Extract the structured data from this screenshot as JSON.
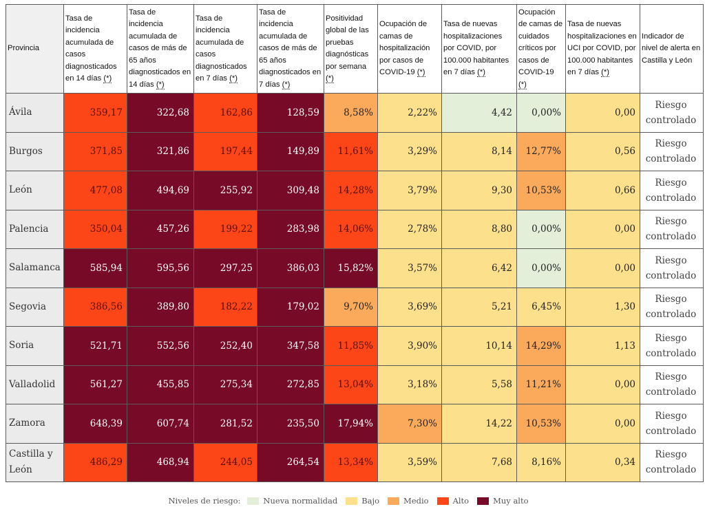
{
  "colors": {
    "nueva_normalidad": "#e3efd9",
    "bajo": "#fce08b",
    "medio": "#fbaa5b",
    "alto": "#fd4617",
    "muy_alto": "#760a27"
  },
  "table": {
    "info_mark": "(*)",
    "headers": [
      {
        "label": "Provincia",
        "has_info": false
      },
      {
        "label": "Tasa de incidencia acumulada de casos diagnosticados en 14 días",
        "has_info": true
      },
      {
        "label": "Tasa de incidencia acumulada de casos de más de 65 años diagnosticados en 14 días",
        "has_info": true
      },
      {
        "label": "Tasa de incidencia acumulada de casos diagnosticados en 7 días",
        "has_info": true
      },
      {
        "label": "Tasa de incidencia acumulada de casos de más de 65 años diagnosticados en 7 días",
        "has_info": true
      },
      {
        "label": "Positividad global de las pruebas diagnósticas por semana",
        "has_info": true
      },
      {
        "label": "Ocupación de camas de hospitalización por casos de COVID-19",
        "has_info": true
      },
      {
        "label": "Tasa de nuevas hospitalizaciones por COVID, por 100.000 habitantes en 7 días",
        "has_info": true
      },
      {
        "label": "Ocupación de camas de cuidados críticos por casos de COVID-19",
        "has_info": true
      },
      {
        "label": "Tasa de nuevas hospitalizaciones en UCI por COVID, por 100.000 habitantes en 7 días",
        "has_info": true
      },
      {
        "label": "Indicador de nivel de alerta en Castilla y León",
        "has_info": false
      }
    ],
    "rows": [
      {
        "provincia": "Ávila",
        "alerta": "Riesgo controlado",
        "cells": [
          [
            "359,17",
            "alto"
          ],
          [
            "322,68",
            "muy"
          ],
          [
            "162,86",
            "alto"
          ],
          [
            "128,59",
            "muy"
          ],
          [
            "8,58%",
            "med"
          ],
          [
            "2,22%",
            "bajo"
          ],
          [
            "4,42",
            "nn"
          ],
          [
            "0,00%",
            "nn"
          ],
          [
            "0,00",
            "bajo"
          ]
        ]
      },
      {
        "provincia": "Burgos",
        "alerta": "Riesgo controlado",
        "cells": [
          [
            "371,85",
            "alto"
          ],
          [
            "321,86",
            "muy"
          ],
          [
            "197,44",
            "alto"
          ],
          [
            "149,89",
            "muy"
          ],
          [
            "11,61%",
            "alto"
          ],
          [
            "3,29%",
            "bajo"
          ],
          [
            "8,14",
            "bajo"
          ],
          [
            "12,77%",
            "med"
          ],
          [
            "0,56",
            "bajo"
          ]
        ]
      },
      {
        "provincia": "León",
        "alerta": "Riesgo controlado",
        "cells": [
          [
            "477,08",
            "alto"
          ],
          [
            "494,69",
            "muy"
          ],
          [
            "255,92",
            "muy"
          ],
          [
            "309,48",
            "muy"
          ],
          [
            "14,28%",
            "alto"
          ],
          [
            "3,79%",
            "bajo"
          ],
          [
            "9,30",
            "bajo"
          ],
          [
            "10,53%",
            "med"
          ],
          [
            "0,66",
            "bajo"
          ]
        ]
      },
      {
        "provincia": "Palencia",
        "alerta": "Riesgo controlado",
        "cells": [
          [
            "350,04",
            "alto"
          ],
          [
            "457,26",
            "muy"
          ],
          [
            "199,22",
            "alto"
          ],
          [
            "283,98",
            "muy"
          ],
          [
            "14,06%",
            "alto"
          ],
          [
            "2,78%",
            "bajo"
          ],
          [
            "8,80",
            "bajo"
          ],
          [
            "0,00%",
            "nn"
          ],
          [
            "0,00",
            "bajo"
          ]
        ]
      },
      {
        "provincia": "Salamanca",
        "alerta": "Riesgo controlado",
        "cells": [
          [
            "585,94",
            "muy"
          ],
          [
            "595,56",
            "muy"
          ],
          [
            "297,25",
            "muy"
          ],
          [
            "386,03",
            "muy"
          ],
          [
            "15,82%",
            "muy"
          ],
          [
            "3,57%",
            "bajo"
          ],
          [
            "6,42",
            "bajo"
          ],
          [
            "0,00%",
            "nn"
          ],
          [
            "0,00",
            "bajo"
          ]
        ]
      },
      {
        "provincia": "Segovia",
        "alerta": "Riesgo controlado",
        "cells": [
          [
            "386,56",
            "alto"
          ],
          [
            "389,80",
            "muy"
          ],
          [
            "182,22",
            "alto"
          ],
          [
            "179,02",
            "muy"
          ],
          [
            "9,70%",
            "med"
          ],
          [
            "3,69%",
            "bajo"
          ],
          [
            "5,21",
            "bajo"
          ],
          [
            "6,45%",
            "bajo"
          ],
          [
            "1,30",
            "bajo"
          ]
        ]
      },
      {
        "provincia": "Soria",
        "alerta": "Riesgo controlado",
        "cells": [
          [
            "521,71",
            "muy"
          ],
          [
            "552,56",
            "muy"
          ],
          [
            "252,40",
            "muy"
          ],
          [
            "347,58",
            "muy"
          ],
          [
            "11,85%",
            "alto"
          ],
          [
            "3,90%",
            "bajo"
          ],
          [
            "10,14",
            "bajo"
          ],
          [
            "14,29%",
            "med"
          ],
          [
            "1,13",
            "bajo"
          ]
        ]
      },
      {
        "provincia": "Valladolid",
        "alerta": "Riesgo controlado",
        "cells": [
          [
            "561,27",
            "muy"
          ],
          [
            "455,85",
            "muy"
          ],
          [
            "275,34",
            "muy"
          ],
          [
            "272,85",
            "muy"
          ],
          [
            "13,04%",
            "alto"
          ],
          [
            "3,18%",
            "bajo"
          ],
          [
            "5,58",
            "bajo"
          ],
          [
            "11,21%",
            "med"
          ],
          [
            "0,00",
            "bajo"
          ]
        ]
      },
      {
        "provincia": "Zamora",
        "alerta": "Riesgo controlado",
        "cells": [
          [
            "648,39",
            "muy"
          ],
          [
            "607,74",
            "muy"
          ],
          [
            "281,52",
            "muy"
          ],
          [
            "235,50",
            "muy"
          ],
          [
            "17,94%",
            "muy"
          ],
          [
            "7,30%",
            "med"
          ],
          [
            "14,22",
            "bajo"
          ],
          [
            "10,53%",
            "med"
          ],
          [
            "0,00",
            "bajo"
          ]
        ]
      },
      {
        "provincia": "Castilla y León",
        "alerta": "Riesgo controlado",
        "cells": [
          [
            "486,29",
            "alto"
          ],
          [
            "468,94",
            "muy"
          ],
          [
            "244,05",
            "alto"
          ],
          [
            "264,54",
            "muy"
          ],
          [
            "13,34%",
            "alto"
          ],
          [
            "3,59%",
            "bajo"
          ],
          [
            "7,68",
            "bajo"
          ],
          [
            "8,16%",
            "bajo"
          ],
          [
            "0,34",
            "bajo"
          ]
        ]
      }
    ]
  },
  "legend": {
    "title": "Niveles de riesgo:",
    "items": [
      {
        "label": "Nueva normalidad",
        "level": "nn"
      },
      {
        "label": "Bajo",
        "level": "bajo"
      },
      {
        "label": "Medio",
        "level": "med"
      },
      {
        "label": "Alto",
        "level": "alto"
      },
      {
        "label": "Muy alto",
        "level": "muy"
      }
    ]
  }
}
